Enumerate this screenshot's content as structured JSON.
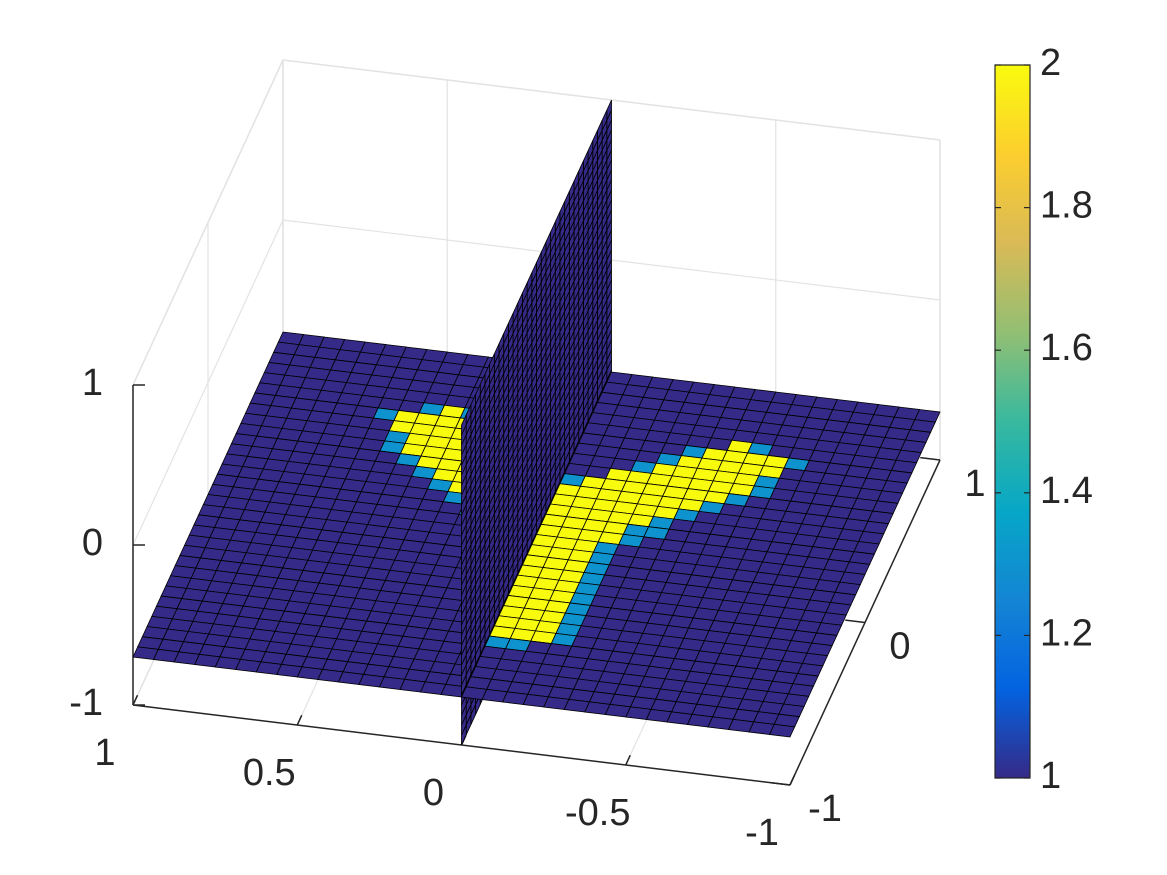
{
  "chart_data": {
    "type": "surface3d",
    "xlim": [
      -1,
      1
    ],
    "xticks": [
      -1,
      -0.5,
      0,
      0.5,
      1
    ],
    "ylim": [
      -1,
      1
    ],
    "yticks": [
      -1,
      0,
      1
    ],
    "zlim": [
      -1,
      1
    ],
    "zticks": [
      -1,
      0,
      1
    ],
    "grid": true,
    "clim": [
      1,
      2
    ],
    "colorbar_ticks": [
      1,
      1.2,
      1.4,
      1.6,
      1.8,
      2
    ],
    "colormap": [
      "#352a87",
      "#0363e1",
      "#1485d4",
      "#06a7c6",
      "#38b99e",
      "#92bf73",
      "#d9ba56",
      "#fcce2e",
      "#f9fb0e"
    ],
    "surface": {
      "plane_z": -0.7,
      "plane_value": 1,
      "wall_x": 0,
      "wall_value": 1,
      "regions": [
        {
          "value": 1.3,
          "polygon": [
            [
              0.05,
              -0.68
            ],
            [
              -0.25,
              -0.64
            ],
            [
              -0.25,
              -0.02
            ],
            [
              -0.62,
              0.42
            ],
            [
              -0.66,
              0.6
            ],
            [
              -0.47,
              0.7
            ],
            [
              -0.02,
              0.34
            ],
            [
              0.4,
              0.72
            ],
            [
              0.6,
              0.62
            ],
            [
              0.55,
              0.38
            ],
            [
              0.27,
              0.1
            ],
            [
              0.07,
              0.0
            ]
          ]
        },
        {
          "value": 2,
          "polygon": [
            [
              0.02,
              -0.63
            ],
            [
              -0.2,
              -0.6
            ],
            [
              -0.2,
              0.0
            ],
            [
              -0.58,
              0.45
            ],
            [
              -0.62,
              0.6
            ],
            [
              -0.47,
              0.66
            ],
            [
              -0.02,
              0.3
            ],
            [
              0.4,
              0.68
            ],
            [
              0.56,
              0.6
            ],
            [
              0.52,
              0.42
            ],
            [
              0.25,
              0.15
            ],
            [
              0.05,
              0.05
            ]
          ]
        }
      ]
    }
  }
}
